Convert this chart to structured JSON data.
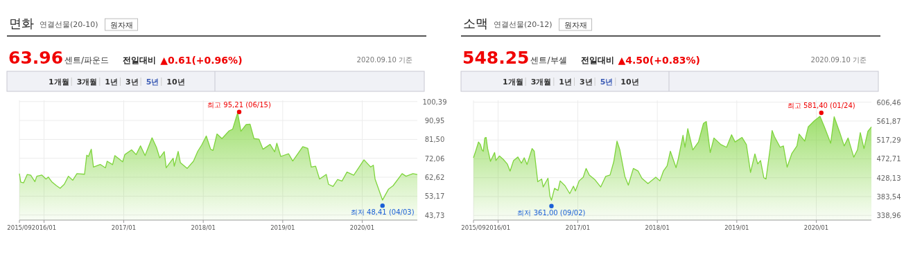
{
  "chart_data": [
    {
      "type": "area",
      "title": "면화",
      "subtitle": "연결선물(20-10)",
      "color": "#7ed43c",
      "grid": true,
      "annotations": [
        "원자재",
        "63.96",
        "센트/파운드",
        "전일대비",
        "▲0.61(+0.96%)",
        "2020.09.10 기준",
        "1개월",
        "3개월",
        "1년",
        "3년",
        "5년",
        "10년",
        {
          "text": "최고 95,21 (06/15)",
          "x": "2018-06-15",
          "y": 95.21
        },
        {
          "text": "최저 48,41 (04/03)",
          "x": "2020-04-03",
          "y": 48.41
        }
      ],
      "xlim": [
        "2015-09-10",
        "2020-09-10"
      ],
      "xticks": [
        {
          "value": "2015-09-10",
          "label": "2015/09"
        },
        {
          "value": "2016-01-01",
          "label": "2016/01"
        },
        {
          "value": "2017-01-01",
          "label": "2017/01"
        },
        {
          "value": "2018-01-01",
          "label": "2018/01"
        },
        {
          "value": "2019-01-01",
          "label": "2019/01"
        },
        {
          "value": "2020-01-01",
          "label": "2020/01"
        }
      ],
      "ylim": [
        41.2,
        101.0
      ],
      "yticks": [
        {
          "value": 100.39,
          "label": "100,39"
        },
        {
          "value": 90.95,
          "label": "90,95"
        },
        {
          "value": 81.5,
          "label": "81,50"
        },
        {
          "value": 72.06,
          "label": "72,06"
        },
        {
          "value": 62.62,
          "label": "62,62"
        },
        {
          "value": 53.17,
          "label": "53,17"
        },
        {
          "value": 43.73,
          "label": "43,73"
        }
      ],
      "x": [
        "2015-09-10",
        "2015-09-16",
        "2015-09-29",
        "2015-10-16",
        "2015-11-01",
        "2015-11-20",
        "2015-11-29",
        "2015-12-22",
        "2016-01-10",
        "2016-01-21",
        "2016-02-05",
        "2016-02-27",
        "2016-03-15",
        "2016-04-03",
        "2016-04-22",
        "2016-05-12",
        "2016-05-31",
        "2016-07-05",
        "2016-07-15",
        "2016-07-23",
        "2016-08-05",
        "2016-08-15",
        "2016-09-15",
        "2016-10-09",
        "2016-10-17",
        "2016-11-11",
        "2016-11-21",
        "2016-12-27",
        "2017-01-06",
        "2017-02-06",
        "2017-02-27",
        "2017-03-19",
        "2017-04-09",
        "2017-05-11",
        "2017-05-31",
        "2017-06-15",
        "2017-07-06",
        "2017-07-15",
        "2017-08-16",
        "2017-08-21",
        "2017-09-08",
        "2017-09-18",
        "2017-10-19",
        "2017-11-17",
        "2017-12-07",
        "2017-12-25",
        "2018-01-15",
        "2018-02-04",
        "2018-02-15",
        "2018-03-05",
        "2018-03-28",
        "2018-04-30",
        "2018-05-16",
        "2018-06-08",
        "2018-06-23",
        "2018-07-17",
        "2018-08-04",
        "2018-08-22",
        "2018-09-14",
        "2018-10-02",
        "2018-11-04",
        "2018-11-25",
        "2018-12-05",
        "2018-12-23",
        "2019-01-28",
        "2019-02-16",
        "2019-04-03",
        "2019-04-26",
        "2019-05-12",
        "2019-06-01",
        "2019-06-19",
        "2019-07-20",
        "2019-07-30",
        "2019-08-20",
        "2019-09-10",
        "2019-09-30",
        "2019-10-23",
        "2019-11-23",
        "2020-01-09",
        "2020-02-09",
        "2020-02-21",
        "2020-02-29",
        "2020-04-03",
        "2020-05-01",
        "2020-05-22",
        "2020-07-02",
        "2020-07-20",
        "2020-08-21",
        "2020-09-10"
      ],
      "values": [
        64.4,
        60.2,
        59.8,
        64.0,
        63.6,
        60.4,
        63.1,
        63.7,
        61.7,
        62.7,
        60.4,
        58.4,
        57.1,
        59.1,
        63.1,
        61.1,
        64.4,
        64.1,
        73.6,
        73.0,
        76.6,
        67.7,
        69.0,
        67.3,
        70.6,
        68.9,
        73.4,
        70.3,
        73.9,
        76.3,
        73.9,
        78.3,
        73.4,
        82.3,
        77.6,
        72.3,
        75.4,
        67.3,
        72.1,
        68.1,
        75.5,
        69.9,
        67.0,
        70.6,
        75.6,
        78.7,
        83.2,
        76.6,
        76.0,
        84.2,
        81.9,
        85.8,
        86.6,
        94.8,
        85.6,
        88.9,
        89.1,
        81.9,
        81.6,
        76.6,
        79.0,
        75.3,
        79.6,
        73.0,
        74.3,
        70.7,
        77.9,
        77.0,
        67.7,
        68.1,
        61.7,
        64.0,
        59.1,
        58.0,
        61.5,
        60.7,
        65.2,
        63.6,
        71.3,
        67.7,
        68.6,
        61.7,
        51.2,
        56.7,
        58.4,
        64.4,
        63.1,
        64.4,
        64.0
      ]
    },
    {
      "type": "area",
      "title": "소맥",
      "subtitle": "연결선물(20-12)",
      "color": "#7ed43c",
      "grid": true,
      "annotations": [
        "원자재",
        "548.25",
        "센트/부셸",
        "전일대비",
        "▲4.50(+0.83%)",
        "2020.09.10 기준",
        "1개월",
        "3개월",
        "1년",
        "3년",
        "5년",
        "10년",
        {
          "text": "최고 581,40 (01/24)",
          "x": "2020-01-24",
          "y": 581.4
        },
        {
          "text": "최저 361,00 (09/02)",
          "x": "2016-09-02",
          "y": 361.0
        }
      ],
      "xlim": [
        "2015-09-10",
        "2020-09-10"
      ],
      "xticks": [
        {
          "value": "2015-09-10",
          "label": "2015/09"
        },
        {
          "value": "2016-01-01",
          "label": "2016/01"
        },
        {
          "value": "2017-01-01",
          "label": "2017/01"
        },
        {
          "value": "2018-01-01",
          "label": "2018/01"
        },
        {
          "value": "2019-01-01",
          "label": "2019/01"
        },
        {
          "value": "2020-01-01",
          "label": "2020/01"
        }
      ],
      "ylim": [
        327.9,
        610.8
      ],
      "yticks": [
        {
          "value": 606.46,
          "label": "606,46"
        },
        {
          "value": 561.87,
          "label": "561,87"
        },
        {
          "value": 517.29,
          "label": "517,29"
        },
        {
          "value": 472.71,
          "label": "472,71"
        },
        {
          "value": 428.13,
          "label": "428,13"
        },
        {
          "value": 383.54,
          "label": "383,54"
        },
        {
          "value": 338.96,
          "label": "338,96"
        }
      ],
      "x": [
        "2015-09-10",
        "2015-09-20",
        "2015-10-03",
        "2015-10-12",
        "2015-10-19",
        "2015-10-25",
        "2015-11-01",
        "2015-11-07",
        "2015-11-14",
        "2015-11-27",
        "2015-12-16",
        "2015-12-22",
        "2016-01-07",
        "2016-01-24",
        "2016-02-12",
        "2016-02-25",
        "2016-03-12",
        "2016-04-01",
        "2016-04-17",
        "2016-04-30",
        "2016-05-13",
        "2016-06-05",
        "2016-06-15",
        "2016-07-01",
        "2016-07-19",
        "2016-07-26",
        "2016-08-17",
        "2016-08-26",
        "2016-09-02",
        "2016-09-16",
        "2016-10-02",
        "2016-10-12",
        "2016-11-03",
        "2016-11-25",
        "2016-12-12",
        "2016-12-21",
        "2017-01-07",
        "2017-01-26",
        "2017-02-08",
        "2017-02-23",
        "2017-03-21",
        "2017-04-16",
        "2017-05-09",
        "2017-05-29",
        "2017-06-15",
        "2017-06-30",
        "2017-07-13",
        "2017-08-05",
        "2017-08-21",
        "2017-09-13",
        "2017-10-05",
        "2017-10-22",
        "2017-11-19",
        "2017-12-25",
        "2018-01-13",
        "2018-01-29",
        "2018-02-15",
        "2018-03-02",
        "2018-03-28",
        "2018-04-07",
        "2018-04-29",
        "2018-05-08",
        "2018-05-21",
        "2018-06-13",
        "2018-07-09",
        "2018-08-01",
        "2018-08-14",
        "2018-09-01",
        "2018-09-18",
        "2018-10-20",
        "2018-11-15",
        "2018-12-08",
        "2018-12-24",
        "2019-01-25",
        "2019-02-14",
        "2019-03-05",
        "2019-03-25",
        "2019-04-07",
        "2019-04-20",
        "2019-05-05",
        "2019-05-15",
        "2019-06-03",
        "2019-06-12",
        "2019-06-23",
        "2019-07-19",
        "2019-08-03",
        "2019-08-20",
        "2019-09-11",
        "2019-10-04",
        "2019-10-14",
        "2019-11-09",
        "2019-11-25",
        "2019-12-23",
        "2020-01-18",
        "2020-02-08",
        "2020-03-07",
        "2020-03-23",
        "2020-04-18",
        "2020-05-08",
        "2020-05-26",
        "2020-06-21",
        "2020-07-08",
        "2020-07-21",
        "2020-08-07",
        "2020-08-25",
        "2020-09-10"
      ],
      "values": [
        475.0,
        490.6,
        512.5,
        506.3,
        493.8,
        490.6,
        521.9,
        523.2,
        496.9,
        466.8,
        487.5,
        468.7,
        479.4,
        471.8,
        460.6,
        443.7,
        468.7,
        476.9,
        462.4,
        475.0,
        459.3,
        496.9,
        490.6,
        418.6,
        424.9,
        406.1,
        426.8,
        384.2,
        374.8,
        403.0,
        398.0,
        420.5,
        409.2,
        390.4,
        408.0,
        396.7,
        420.5,
        429.3,
        449.9,
        434.3,
        423.0,
        406.1,
        431.1,
        434.3,
        465.6,
        514.4,
        493.8,
        431.1,
        410.5,
        449.9,
        443.7,
        426.8,
        414.2,
        429.3,
        420.5,
        443.7,
        456.2,
        490.6,
        451.8,
        471.8,
        528.2,
        500.0,
        543.8,
        493.8,
        512.5,
        556.4,
        560.8,
        487.5,
        521.9,
        506.3,
        500.0,
        529.5,
        512.5,
        523.2,
        506.3,
        440.5,
        484.4,
        460.6,
        468.7,
        428.0,
        424.9,
        496.9,
        539.5,
        525.0,
        500.0,
        503.1,
        453.0,
        485.6,
        503.1,
        531.3,
        514.4,
        548.2,
        562.6,
        573.3,
        546.9,
        509.4,
        572.0,
        534.5,
        503.1,
        521.9,
        476.5,
        493.8,
        534.5,
        496.9,
        537.6,
        548.2
      ]
    }
  ]
}
